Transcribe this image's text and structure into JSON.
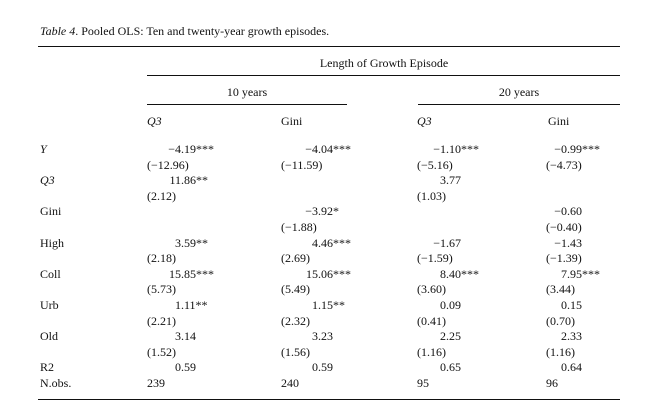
{
  "caption": {
    "label": "Table 4",
    "text": ". Pooled OLS: Ten and twenty-year growth episodes."
  },
  "header": {
    "spanner": "Length of Growth Episode",
    "groups": [
      "10 years",
      "20 years"
    ],
    "columns": [
      "Q3",
      "Gini",
      "Q3",
      "Gini"
    ]
  },
  "rows": [
    {
      "label": "Y",
      "italic": true,
      "coef": [
        "−4.19***",
        "−4.04***",
        "−1.10***",
        "−0.99***"
      ],
      "se": [
        "(−12.96)",
        "(−11.59)",
        "(−5.16)",
        "(−4.73)"
      ]
    },
    {
      "label": "Q3",
      "italic": true,
      "coef": [
        "11.86**",
        "",
        "3.77",
        ""
      ],
      "se": [
        "(2.12)",
        "",
        "(1.03)",
        ""
      ]
    },
    {
      "label": "Gini",
      "italic": false,
      "coef": [
        "",
        "−3.92*",
        "",
        "−0.60"
      ],
      "se": [
        "",
        "(−1.88)",
        "",
        "(−0.40)"
      ]
    },
    {
      "label": "High",
      "italic": false,
      "coef": [
        "3.59**",
        "4.46***",
        "−1.67",
        "−1.43"
      ],
      "se": [
        "(2.18)",
        "(2.69)",
        "(−1.59)",
        "(−1.39)"
      ]
    },
    {
      "label": "Coll",
      "italic": false,
      "coef": [
        "15.85***",
        "15.06***",
        "8.40***",
        "7.95***"
      ],
      "se": [
        "(5.73)",
        "(5.49)",
        "(3.60)",
        "(3.44)"
      ]
    },
    {
      "label": "Urb",
      "italic": false,
      "coef": [
        "1.11**",
        "1.15**",
        "0.09",
        "0.15"
      ],
      "se": [
        "(2.21)",
        "(2.32)",
        "(0.41)",
        "(0.70)"
      ]
    },
    {
      "label": "Old",
      "italic": false,
      "coef": [
        "3.14",
        "3.23",
        "2.25",
        "2.33"
      ],
      "se": [
        "(1.52)",
        "(1.56)",
        "(1.16)",
        "(1.16)"
      ]
    }
  ],
  "stats": [
    {
      "label": "R2",
      "values": [
        "0.59",
        "0.59",
        "0.65",
        "0.64"
      ]
    },
    {
      "label": "N.obs.",
      "values": [
        "239",
        "240",
        "95",
        "96"
      ]
    }
  ]
}
